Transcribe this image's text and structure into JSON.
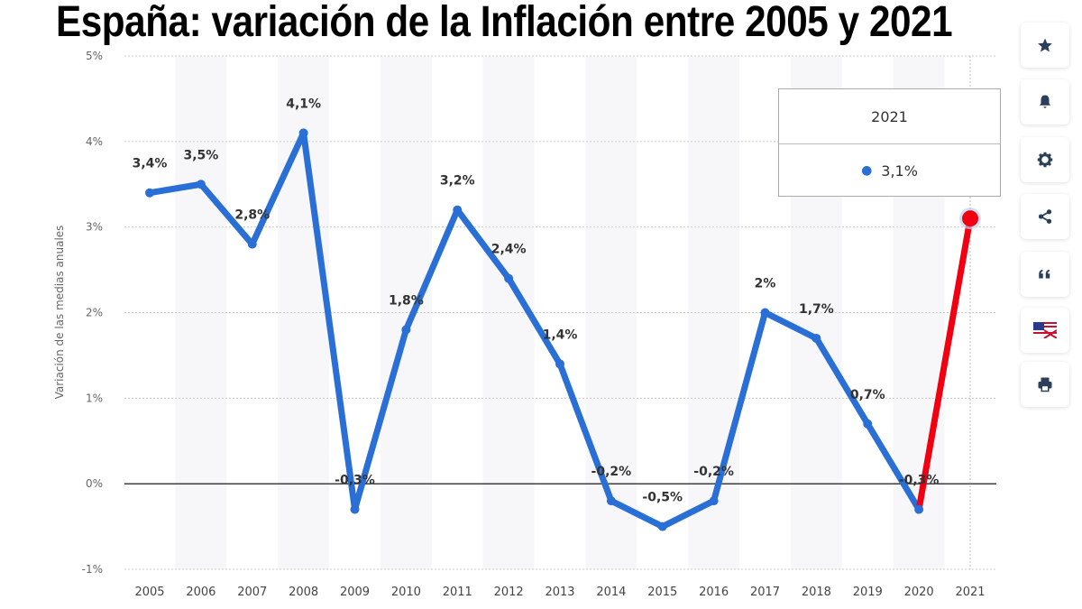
{
  "title": "España: variación de la Inflación entre 2005 y 2021",
  "chart_data": {
    "type": "line",
    "title": "España: variación de la Inflación entre 2005 y 2021",
    "xlabel": "",
    "ylabel": "Variación de las medias anuales",
    "categories": [
      "2005",
      "2006",
      "2007",
      "2008",
      "2009",
      "2010",
      "2011",
      "2012",
      "2013",
      "2014",
      "2015",
      "2016",
      "2017",
      "2018",
      "2019",
      "2020",
      "2021"
    ],
    "values": [
      3.4,
      3.5,
      2.8,
      4.1,
      -0.3,
      1.8,
      3.2,
      2.4,
      1.4,
      -0.2,
      -0.5,
      -0.2,
      2.0,
      1.7,
      0.7,
      -0.3,
      3.1
    ],
    "data_labels": [
      "3,4%",
      "3,5%",
      "2,8%",
      "4,1%",
      "-0,3%",
      "1,8%",
      "3,2%",
      "2,4%",
      "1,4%",
      "-0,2%",
      "-0,5%",
      "-0,2%",
      "2%",
      "1,7%",
      "0,7%",
      "-0,3%",
      ""
    ],
    "ylim": [
      -1,
      5
    ],
    "yticks": [
      5,
      4,
      3,
      2,
      1,
      0,
      -1
    ],
    "ytick_labels": [
      "5%",
      "4%",
      "3%",
      "2%",
      "1%",
      "0%",
      "-1%"
    ],
    "grid": true,
    "colors": {
      "line": "#2a6fd6",
      "highlight": "#f00010"
    },
    "highlight_segment": [
      "2020",
      "2021"
    ]
  },
  "tooltip": {
    "year": "2021",
    "value": "3,1%"
  },
  "sidebar": [
    {
      "icon": "star-icon"
    },
    {
      "icon": "bell-icon"
    },
    {
      "icon": "gear-icon"
    },
    {
      "icon": "share-icon"
    },
    {
      "icon": "quote-icon"
    },
    {
      "icon": "flag-icon"
    },
    {
      "icon": "print-icon"
    }
  ]
}
